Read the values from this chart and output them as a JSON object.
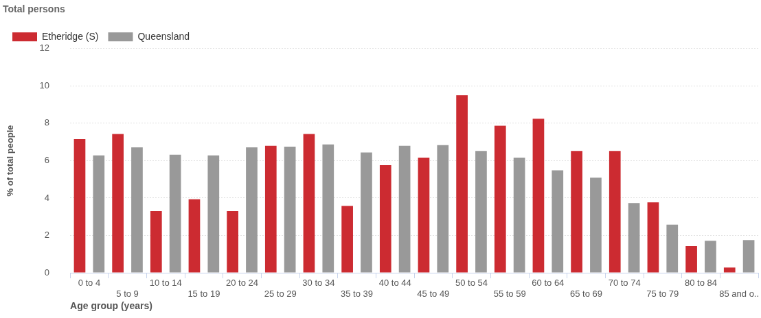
{
  "chart_data": {
    "type": "bar",
    "title": "Total persons",
    "xlabel": "Age group (years)",
    "ylabel": "% of total people",
    "categories": [
      "0 to 4",
      "5 to 9",
      "10 to 14",
      "15 to 19",
      "20 to 24",
      "25 to 29",
      "30 to 34",
      "35 to 39",
      "40 to 44",
      "45 to 49",
      "50 to 54",
      "55 to 59",
      "60 to 64",
      "65 to 69",
      "70 to 74",
      "75 to 79",
      "80 to 84",
      "85 and o.."
    ],
    "series": [
      {
        "name": "Etheridge (S)",
        "color": "#cc2b31",
        "values": [
          7.15,
          7.43,
          3.3,
          3.93,
          3.3,
          6.79,
          7.43,
          3.58,
          5.76,
          6.16,
          9.5,
          7.87,
          8.24,
          6.52,
          6.52,
          3.77,
          1.43,
          0.28
        ]
      },
      {
        "name": "Queensland",
        "color": "#999999",
        "values": [
          6.28,
          6.71,
          6.32,
          6.28,
          6.71,
          6.75,
          6.87,
          6.44,
          6.79,
          6.83,
          6.52,
          6.16,
          5.48,
          5.09,
          3.73,
          2.58,
          1.71,
          1.75
        ]
      }
    ],
    "ylim": [
      0,
      12
    ],
    "yticks": [
      0,
      2,
      4,
      6,
      8,
      10,
      12
    ],
    "grid": "y",
    "legend": "top left"
  }
}
